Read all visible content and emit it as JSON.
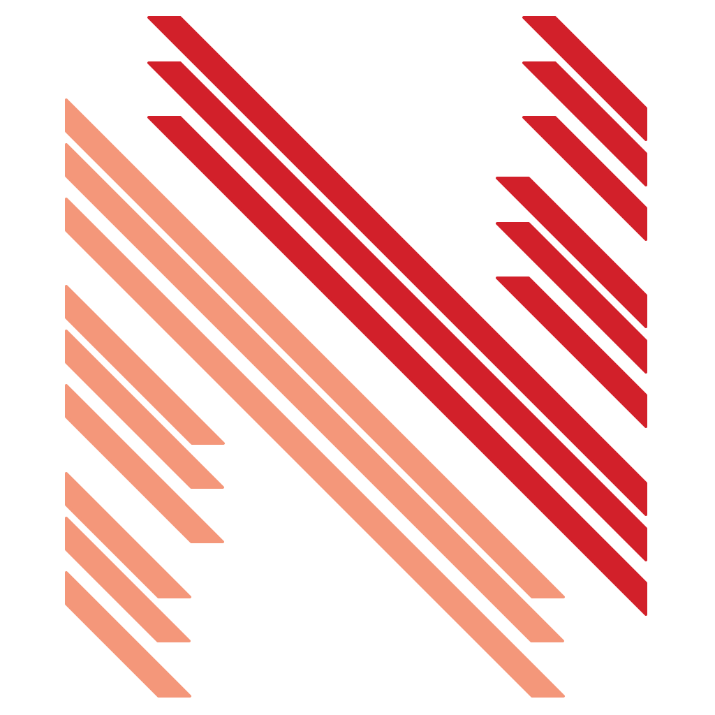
{
  "logo": {
    "icon": "striped-n-logo-icon",
    "colors": {
      "primary_red": "#D2202A",
      "secondary_salmon": "#F4977A",
      "background": "#FFFFFF"
    }
  }
}
